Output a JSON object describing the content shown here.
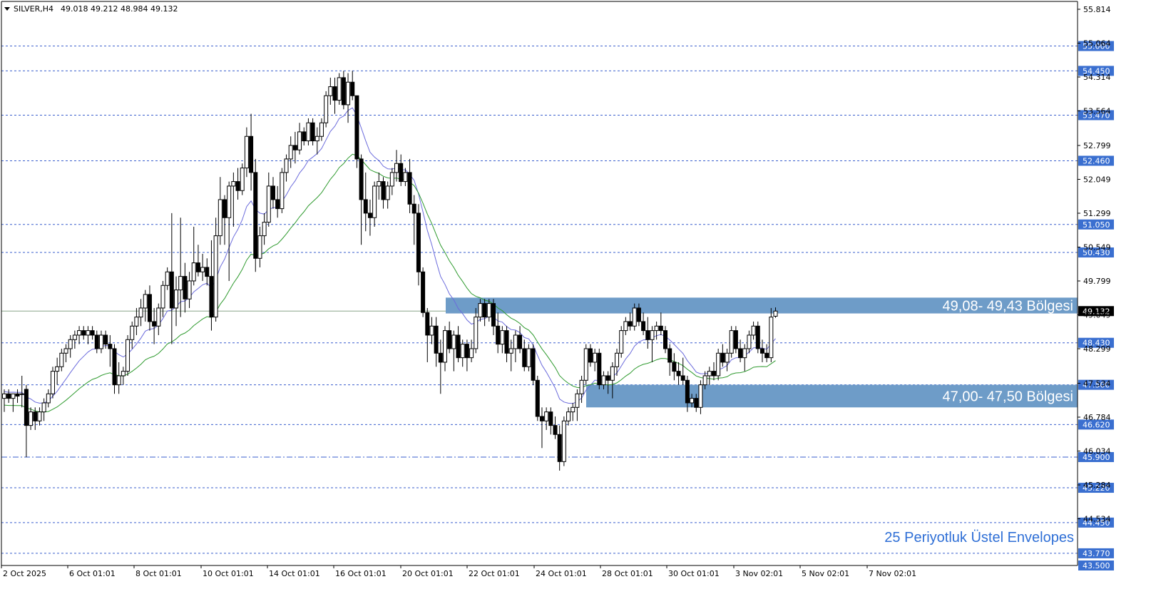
{
  "header": {
    "symbol": "SILVER,H4",
    "ohlc": "49.018 49.212 48.984 49.132"
  },
  "colors": {
    "background": "#ffffff",
    "candle": "#000000",
    "ema_fast": "#6b6bdc",
    "ema_slow": "#2e9a2e",
    "zone_fill": "#6e9cc8",
    "level_line": "#3a5fcd",
    "level_tag": "#3a6fd0",
    "current_tag": "#000000"
  },
  "annotations": {
    "note": "25 Periyotluk Üstel Envelopes"
  },
  "chart_data": {
    "type": "candlestick",
    "title": "SILVER,H4",
    "ylim": [
      43.5,
      55.814
    ],
    "y_ticks": [
      "55.814",
      "55.064",
      "54.314",
      "53.564",
      "52.799",
      "52.049",
      "51.299",
      "50.549",
      "49.799",
      "49.049",
      "48.299",
      "47.534",
      "46.784",
      "46.034",
      "45.284",
      "44.534"
    ],
    "x_ticks": [
      "2 Oct 2025",
      "6 Oct 01:01",
      "8 Oct 01:01",
      "10 Oct 01:01",
      "14 Oct 01:01",
      "16 Oct 01:01",
      "20 Oct 01:01",
      "22 Oct 01:01",
      "24 Oct 01:01",
      "28 Oct 01:01",
      "30 Oct 01:01",
      "3 Nov 02:01",
      "5 Nov 02:01",
      "7 Nov 02:01"
    ],
    "levels": [
      {
        "label": "55.000",
        "value": 55.0,
        "style": "dashed"
      },
      {
        "label": "54.450",
        "value": 54.45,
        "style": "dashed"
      },
      {
        "label": "53.470",
        "value": 53.47,
        "style": "dashed"
      },
      {
        "label": "52.460",
        "value": 52.46,
        "style": "dashed"
      },
      {
        "label": "51.050",
        "value": 51.05,
        "style": "dashed"
      },
      {
        "label": "50.430",
        "value": 50.43,
        "style": "dashed"
      },
      {
        "label": "48.430",
        "value": 48.43,
        "style": "dashed"
      },
      {
        "label": "47.500",
        "value": 47.5,
        "style": "dashed"
      },
      {
        "label": "46.620",
        "value": 46.62,
        "style": "dashed"
      },
      {
        "label": "45.900",
        "value": 45.9,
        "style": "dashdot"
      },
      {
        "label": "45.220",
        "value": 45.22,
        "style": "dashed"
      },
      {
        "label": "44.450",
        "value": 44.45,
        "style": "dashed"
      },
      {
        "label": "43.770",
        "value": 43.77,
        "style": "dashed"
      },
      {
        "label": "43.500",
        "value": 43.5,
        "style": "none"
      }
    ],
    "zones": [
      {
        "label": "49,08- 49,43 Bölgesi",
        "low": 49.08,
        "high": 49.43
      },
      {
        "label": "47,00- 47,50 Bölgesi",
        "low": 47.0,
        "high": 47.5
      }
    ],
    "current_price": {
      "label": "49.132",
      "value": 49.132
    },
    "candles": [
      {
        "o": 47.2,
        "h": 47.4,
        "l": 46.9,
        "c": 47.3
      },
      {
        "o": 47.3,
        "h": 47.4,
        "l": 47.1,
        "c": 47.2
      },
      {
        "o": 47.2,
        "h": 47.3,
        "l": 46.9,
        "c": 47.3
      },
      {
        "o": 47.3,
        "h": 47.4,
        "l": 47.1,
        "c": 47.25
      },
      {
        "o": 47.3,
        "h": 47.7,
        "l": 47.0,
        "c": 47.3
      },
      {
        "o": 47.4,
        "h": 47.5,
        "l": 45.9,
        "c": 46.6
      },
      {
        "o": 46.6,
        "h": 47.0,
        "l": 46.5,
        "c": 46.9
      },
      {
        "o": 46.9,
        "h": 47.0,
        "l": 46.5,
        "c": 46.7
      },
      {
        "o": 46.7,
        "h": 47.0,
        "l": 46.6,
        "c": 46.9
      },
      {
        "o": 46.9,
        "h": 47.2,
        "l": 46.7,
        "c": 47.1
      },
      {
        "o": 47.1,
        "h": 47.4,
        "l": 47.0,
        "c": 47.3
      },
      {
        "o": 47.3,
        "h": 47.9,
        "l": 47.2,
        "c": 47.8
      },
      {
        "o": 47.8,
        "h": 48.1,
        "l": 47.5,
        "c": 47.9
      },
      {
        "o": 47.9,
        "h": 48.3,
        "l": 47.8,
        "c": 48.2
      },
      {
        "o": 48.2,
        "h": 48.4,
        "l": 48.0,
        "c": 48.3
      },
      {
        "o": 48.3,
        "h": 48.6,
        "l": 48.1,
        "c": 48.5
      },
      {
        "o": 48.5,
        "h": 48.7,
        "l": 48.3,
        "c": 48.6
      },
      {
        "o": 48.6,
        "h": 48.8,
        "l": 48.4,
        "c": 48.7
      },
      {
        "o": 48.7,
        "h": 48.8,
        "l": 48.5,
        "c": 48.6
      },
      {
        "o": 48.6,
        "h": 48.8,
        "l": 48.4,
        "c": 48.7
      },
      {
        "o": 48.7,
        "h": 48.8,
        "l": 48.5,
        "c": 48.6
      },
      {
        "o": 48.6,
        "h": 48.7,
        "l": 48.2,
        "c": 48.3
      },
      {
        "o": 48.3,
        "h": 48.7,
        "l": 48.2,
        "c": 48.6
      },
      {
        "o": 48.6,
        "h": 48.7,
        "l": 48.3,
        "c": 48.4
      },
      {
        "o": 48.4,
        "h": 48.6,
        "l": 47.9,
        "c": 48.3
      },
      {
        "o": 48.3,
        "h": 48.4,
        "l": 47.3,
        "c": 47.5
      },
      {
        "o": 47.5,
        "h": 48.0,
        "l": 47.3,
        "c": 47.7
      },
      {
        "o": 47.7,
        "h": 47.9,
        "l": 47.5,
        "c": 47.8
      },
      {
        "o": 47.8,
        "h": 48.6,
        "l": 47.7,
        "c": 48.5
      },
      {
        "o": 48.5,
        "h": 48.9,
        "l": 48.3,
        "c": 48.8
      },
      {
        "o": 48.8,
        "h": 49.2,
        "l": 48.6,
        "c": 49.0
      },
      {
        "o": 49.0,
        "h": 49.4,
        "l": 48.8,
        "c": 49.2
      },
      {
        "o": 49.2,
        "h": 49.6,
        "l": 48.9,
        "c": 49.5
      },
      {
        "o": 49.5,
        "h": 49.7,
        "l": 48.7,
        "c": 48.9
      },
      {
        "o": 48.9,
        "h": 49.2,
        "l": 48.4,
        "c": 48.8
      },
      {
        "o": 48.8,
        "h": 49.3,
        "l": 48.6,
        "c": 49.2
      },
      {
        "o": 49.2,
        "h": 49.8,
        "l": 49.0,
        "c": 49.7
      },
      {
        "o": 49.7,
        "h": 50.1,
        "l": 49.6,
        "c": 50.0
      },
      {
        "o": 50.0,
        "h": 51.3,
        "l": 48.4,
        "c": 49.2
      },
      {
        "o": 49.2,
        "h": 49.9,
        "l": 48.8,
        "c": 49.6
      },
      {
        "o": 49.6,
        "h": 51.2,
        "l": 49.0,
        "c": 49.9
      },
      {
        "o": 49.9,
        "h": 50.2,
        "l": 49.1,
        "c": 49.4
      },
      {
        "o": 49.4,
        "h": 50.0,
        "l": 49.2,
        "c": 49.8
      },
      {
        "o": 49.8,
        "h": 51.0,
        "l": 49.7,
        "c": 50.2
      },
      {
        "o": 50.2,
        "h": 50.6,
        "l": 49.9,
        "c": 50.0
      },
      {
        "o": 50.0,
        "h": 50.4,
        "l": 49.8,
        "c": 50.1
      },
      {
        "o": 50.1,
        "h": 50.3,
        "l": 49.7,
        "c": 49.9
      },
      {
        "o": 49.9,
        "h": 50.7,
        "l": 48.7,
        "c": 49.0
      },
      {
        "o": 49.0,
        "h": 51.2,
        "l": 48.9,
        "c": 50.8
      },
      {
        "o": 50.8,
        "h": 52.1,
        "l": 50.6,
        "c": 51.6
      },
      {
        "o": 51.6,
        "h": 51.7,
        "l": 50.6,
        "c": 51.2
      },
      {
        "o": 51.2,
        "h": 52.0,
        "l": 49.8,
        "c": 51.9
      },
      {
        "o": 51.9,
        "h": 52.2,
        "l": 51.0,
        "c": 52.0
      },
      {
        "o": 52.0,
        "h": 52.3,
        "l": 51.6,
        "c": 51.8
      },
      {
        "o": 51.8,
        "h": 52.4,
        "l": 51.7,
        "c": 52.3
      },
      {
        "o": 52.3,
        "h": 53.2,
        "l": 52.1,
        "c": 53.0
      },
      {
        "o": 53.0,
        "h": 53.5,
        "l": 51.8,
        "c": 52.2
      },
      {
        "o": 52.2,
        "h": 52.5,
        "l": 50.0,
        "c": 50.3
      },
      {
        "o": 50.3,
        "h": 51.0,
        "l": 50.1,
        "c": 50.8
      },
      {
        "o": 50.8,
        "h": 51.3,
        "l": 50.6,
        "c": 51.1
      },
      {
        "o": 51.1,
        "h": 52.2,
        "l": 51.0,
        "c": 51.9
      },
      {
        "o": 51.9,
        "h": 52.1,
        "l": 51.4,
        "c": 51.6
      },
      {
        "o": 51.6,
        "h": 51.9,
        "l": 51.2,
        "c": 51.4
      },
      {
        "o": 51.4,
        "h": 52.3,
        "l": 51.3,
        "c": 52.2
      },
      {
        "o": 52.2,
        "h": 52.6,
        "l": 52.0,
        "c": 52.5
      },
      {
        "o": 52.5,
        "h": 53.0,
        "l": 52.3,
        "c": 52.8
      },
      {
        "o": 52.8,
        "h": 53.1,
        "l": 52.4,
        "c": 52.7
      },
      {
        "o": 52.7,
        "h": 53.3,
        "l": 52.6,
        "c": 53.1
      },
      {
        "o": 53.1,
        "h": 53.2,
        "l": 52.8,
        "c": 52.9
      },
      {
        "o": 52.9,
        "h": 53.4,
        "l": 52.8,
        "c": 53.3
      },
      {
        "o": 53.3,
        "h": 53.4,
        "l": 52.8,
        "c": 52.9
      },
      {
        "o": 52.9,
        "h": 53.2,
        "l": 52.6,
        "c": 53.0
      },
      {
        "o": 53.0,
        "h": 53.4,
        "l": 52.9,
        "c": 53.3
      },
      {
        "o": 53.3,
        "h": 54.0,
        "l": 53.2,
        "c": 53.9
      },
      {
        "o": 53.9,
        "h": 54.3,
        "l": 53.7,
        "c": 54.1
      },
      {
        "o": 54.1,
        "h": 54.3,
        "l": 53.5,
        "c": 53.8
      },
      {
        "o": 53.8,
        "h": 54.4,
        "l": 53.7,
        "c": 54.3
      },
      {
        "o": 54.3,
        "h": 54.45,
        "l": 53.6,
        "c": 53.7
      },
      {
        "o": 53.7,
        "h": 54.4,
        "l": 53.3,
        "c": 54.2
      },
      {
        "o": 54.2,
        "h": 54.45,
        "l": 53.8,
        "c": 53.9
      },
      {
        "o": 53.9,
        "h": 53.9,
        "l": 52.3,
        "c": 52.5
      },
      {
        "o": 52.5,
        "h": 52.6,
        "l": 50.6,
        "c": 51.6
      },
      {
        "o": 51.6,
        "h": 52.2,
        "l": 50.9,
        "c": 51.3
      },
      {
        "o": 51.3,
        "h": 51.6,
        "l": 50.8,
        "c": 51.2
      },
      {
        "o": 51.2,
        "h": 52.0,
        "l": 51.0,
        "c": 51.9
      },
      {
        "o": 51.9,
        "h": 52.2,
        "l": 51.6,
        "c": 52.0
      },
      {
        "o": 52.0,
        "h": 52.1,
        "l": 51.4,
        "c": 51.6
      },
      {
        "o": 51.6,
        "h": 52.0,
        "l": 51.4,
        "c": 51.9
      },
      {
        "o": 51.9,
        "h": 52.3,
        "l": 51.7,
        "c": 52.2
      },
      {
        "o": 52.2,
        "h": 52.7,
        "l": 52.0,
        "c": 52.4
      },
      {
        "o": 52.4,
        "h": 52.6,
        "l": 51.9,
        "c": 52.0
      },
      {
        "o": 52.0,
        "h": 52.3,
        "l": 51.9,
        "c": 52.2
      },
      {
        "o": 52.2,
        "h": 52.5,
        "l": 51.3,
        "c": 51.5
      },
      {
        "o": 51.5,
        "h": 51.7,
        "l": 50.6,
        "c": 51.3
      },
      {
        "o": 51.3,
        "h": 51.5,
        "l": 49.7,
        "c": 50.0
      },
      {
        "o": 50.0,
        "h": 50.1,
        "l": 49.0,
        "c": 49.1
      },
      {
        "o": 49.1,
        "h": 49.2,
        "l": 48.0,
        "c": 48.6
      },
      {
        "o": 48.6,
        "h": 49.0,
        "l": 48.4,
        "c": 48.8
      },
      {
        "o": 48.8,
        "h": 49.0,
        "l": 47.9,
        "c": 48.2
      },
      {
        "o": 48.2,
        "h": 48.5,
        "l": 47.3,
        "c": 48.0
      },
      {
        "o": 48.0,
        "h": 48.8,
        "l": 47.8,
        "c": 48.7
      },
      {
        "o": 48.7,
        "h": 48.9,
        "l": 48.2,
        "c": 48.3
      },
      {
        "o": 48.3,
        "h": 48.7,
        "l": 47.8,
        "c": 48.6
      },
      {
        "o": 48.6,
        "h": 48.8,
        "l": 48.0,
        "c": 48.1
      },
      {
        "o": 48.1,
        "h": 48.5,
        "l": 47.9,
        "c": 48.4
      },
      {
        "o": 48.4,
        "h": 48.5,
        "l": 47.8,
        "c": 48.1
      },
      {
        "o": 48.1,
        "h": 48.5,
        "l": 48.0,
        "c": 48.3
      },
      {
        "o": 48.3,
        "h": 49.2,
        "l": 48.2,
        "c": 49.0
      },
      {
        "o": 49.0,
        "h": 49.4,
        "l": 48.9,
        "c": 49.3
      },
      {
        "o": 49.3,
        "h": 49.4,
        "l": 48.8,
        "c": 49.0
      },
      {
        "o": 49.0,
        "h": 49.4,
        "l": 48.9,
        "c": 49.3
      },
      {
        "o": 49.3,
        "h": 49.4,
        "l": 48.6,
        "c": 48.8
      },
      {
        "o": 48.8,
        "h": 49.1,
        "l": 48.2,
        "c": 48.4
      },
      {
        "o": 48.4,
        "h": 48.8,
        "l": 48.2,
        "c": 48.7
      },
      {
        "o": 48.7,
        "h": 48.8,
        "l": 48.0,
        "c": 48.2
      },
      {
        "o": 48.2,
        "h": 48.5,
        "l": 47.8,
        "c": 48.3
      },
      {
        "o": 48.3,
        "h": 48.7,
        "l": 48.0,
        "c": 48.6
      },
      {
        "o": 48.6,
        "h": 48.8,
        "l": 48.2,
        "c": 48.3
      },
      {
        "o": 48.3,
        "h": 48.5,
        "l": 47.8,
        "c": 47.9
      },
      {
        "o": 47.9,
        "h": 48.4,
        "l": 47.8,
        "c": 48.3
      },
      {
        "o": 48.3,
        "h": 48.4,
        "l": 47.5,
        "c": 47.6
      },
      {
        "o": 47.6,
        "h": 47.7,
        "l": 46.7,
        "c": 46.8
      },
      {
        "o": 46.8,
        "h": 47.0,
        "l": 46.1,
        "c": 46.7
      },
      {
        "o": 46.7,
        "h": 47.0,
        "l": 46.5,
        "c": 46.9
      },
      {
        "o": 46.9,
        "h": 47.0,
        "l": 46.4,
        "c": 46.6
      },
      {
        "o": 46.6,
        "h": 46.8,
        "l": 46.3,
        "c": 46.4
      },
      {
        "o": 46.4,
        "h": 46.6,
        "l": 45.6,
        "c": 45.8
      },
      {
        "o": 45.8,
        "h": 46.8,
        "l": 45.7,
        "c": 46.7
      },
      {
        "o": 46.7,
        "h": 47.0,
        "l": 46.6,
        "c": 46.9
      },
      {
        "o": 46.9,
        "h": 47.1,
        "l": 46.7,
        "c": 47.0
      },
      {
        "o": 47.0,
        "h": 47.4,
        "l": 46.7,
        "c": 47.3
      },
      {
        "o": 47.3,
        "h": 47.7,
        "l": 47.1,
        "c": 47.6
      },
      {
        "o": 47.6,
        "h": 48.4,
        "l": 47.5,
        "c": 48.3
      },
      {
        "o": 48.3,
        "h": 48.4,
        "l": 47.9,
        "c": 48.0
      },
      {
        "o": 48.0,
        "h": 48.3,
        "l": 47.8,
        "c": 48.2
      },
      {
        "o": 48.2,
        "h": 48.3,
        "l": 47.4,
        "c": 47.5
      },
      {
        "o": 47.5,
        "h": 47.8,
        "l": 47.4,
        "c": 47.7
      },
      {
        "o": 47.7,
        "h": 47.8,
        "l": 47.3,
        "c": 47.6
      },
      {
        "o": 47.6,
        "h": 48.0,
        "l": 47.2,
        "c": 47.9
      },
      {
        "o": 47.9,
        "h": 48.3,
        "l": 47.7,
        "c": 48.2
      },
      {
        "o": 48.2,
        "h": 48.8,
        "l": 48.1,
        "c": 48.7
      },
      {
        "o": 48.7,
        "h": 49.0,
        "l": 48.6,
        "c": 48.9
      },
      {
        "o": 48.9,
        "h": 49.1,
        "l": 48.7,
        "c": 48.8
      },
      {
        "o": 48.8,
        "h": 49.3,
        "l": 48.7,
        "c": 49.2
      },
      {
        "o": 49.2,
        "h": 49.3,
        "l": 48.8,
        "c": 48.9
      },
      {
        "o": 48.9,
        "h": 49.1,
        "l": 48.6,
        "c": 48.7
      },
      {
        "o": 48.7,
        "h": 49.0,
        "l": 48.3,
        "c": 48.5
      },
      {
        "o": 48.5,
        "h": 48.8,
        "l": 48.0,
        "c": 48.7
      },
      {
        "o": 48.7,
        "h": 48.9,
        "l": 48.5,
        "c": 48.8
      },
      {
        "o": 48.8,
        "h": 49.1,
        "l": 48.6,
        "c": 48.7
      },
      {
        "o": 48.7,
        "h": 48.8,
        "l": 48.2,
        "c": 48.3
      },
      {
        "o": 48.3,
        "h": 48.4,
        "l": 47.7,
        "c": 48.0
      },
      {
        "o": 48.0,
        "h": 48.2,
        "l": 47.6,
        "c": 47.8
      },
      {
        "o": 47.8,
        "h": 48.0,
        "l": 47.5,
        "c": 47.7
      },
      {
        "o": 47.7,
        "h": 48.1,
        "l": 47.5,
        "c": 47.6
      },
      {
        "o": 47.6,
        "h": 47.7,
        "l": 46.9,
        "c": 47.1
      },
      {
        "o": 47.1,
        "h": 47.3,
        "l": 47.0,
        "c": 47.2
      },
      {
        "o": 47.2,
        "h": 47.3,
        "l": 46.9,
        "c": 47.0
      },
      {
        "o": 47.0,
        "h": 47.6,
        "l": 46.85,
        "c": 47.5
      },
      {
        "o": 47.5,
        "h": 47.8,
        "l": 47.4,
        "c": 47.7
      },
      {
        "o": 47.7,
        "h": 47.9,
        "l": 47.5,
        "c": 47.8
      },
      {
        "o": 47.8,
        "h": 48.0,
        "l": 47.6,
        "c": 47.7
      },
      {
        "o": 47.7,
        "h": 48.3,
        "l": 47.6,
        "c": 48.2
      },
      {
        "o": 48.2,
        "h": 48.4,
        "l": 47.9,
        "c": 48.0
      },
      {
        "o": 48.0,
        "h": 48.3,
        "l": 47.8,
        "c": 48.2
      },
      {
        "o": 48.2,
        "h": 48.8,
        "l": 48.1,
        "c": 48.7
      },
      {
        "o": 48.7,
        "h": 48.8,
        "l": 48.2,
        "c": 48.3
      },
      {
        "o": 48.3,
        "h": 48.5,
        "l": 48.0,
        "c": 48.1
      },
      {
        "o": 48.1,
        "h": 48.4,
        "l": 47.8,
        "c": 48.3
      },
      {
        "o": 48.3,
        "h": 48.7,
        "l": 48.2,
        "c": 48.6
      },
      {
        "o": 48.6,
        "h": 48.9,
        "l": 48.5,
        "c": 48.8
      },
      {
        "o": 48.8,
        "h": 48.9,
        "l": 48.2,
        "c": 48.3
      },
      {
        "o": 48.3,
        "h": 48.5,
        "l": 48.0,
        "c": 48.2
      },
      {
        "o": 48.2,
        "h": 48.4,
        "l": 48.0,
        "c": 48.1
      },
      {
        "o": 48.1,
        "h": 49.2,
        "l": 48.0,
        "c": 49.0
      },
      {
        "o": 49.018,
        "h": 49.212,
        "l": 48.984,
        "c": 49.132
      }
    ]
  }
}
